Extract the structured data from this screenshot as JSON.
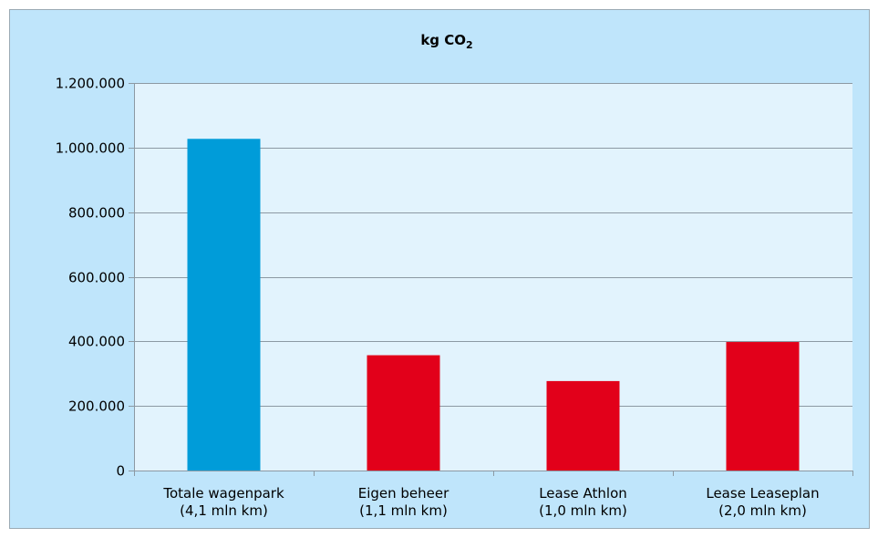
{
  "chart_data": {
    "type": "bar",
    "title": "kg CO",
    "title_subscript": "2",
    "categories": [
      [
        "Totale wagenpark",
        "(4,1 mln km)"
      ],
      [
        "Eigen beheer",
        "(1,1 mln km)"
      ],
      [
        "Lease Athlon",
        "(1,0 mln km)"
      ],
      [
        "Lease Leaseplan",
        "(2,0 mln km)"
      ]
    ],
    "values": [
      1027000,
      357000,
      277000,
      398000
    ],
    "bar_colors": [
      "#009cd9",
      "#e2001a",
      "#e2001a",
      "#e2001a"
    ],
    "ylim": [
      0,
      1200000
    ],
    "yticks": [
      0,
      200000,
      400000,
      600000,
      800000,
      1000000,
      1200000
    ],
    "ytick_labels": [
      "0",
      "200.000",
      "400.000",
      "600.000",
      "800.000",
      "1.000.000",
      "1.200.000"
    ],
    "grid": true,
    "legend": "none",
    "colors": {
      "frame_background": "#bfe5fb",
      "plot_background": "#e2f3fd",
      "grid": "#8c99a3",
      "axis": "#8c99a3"
    }
  }
}
